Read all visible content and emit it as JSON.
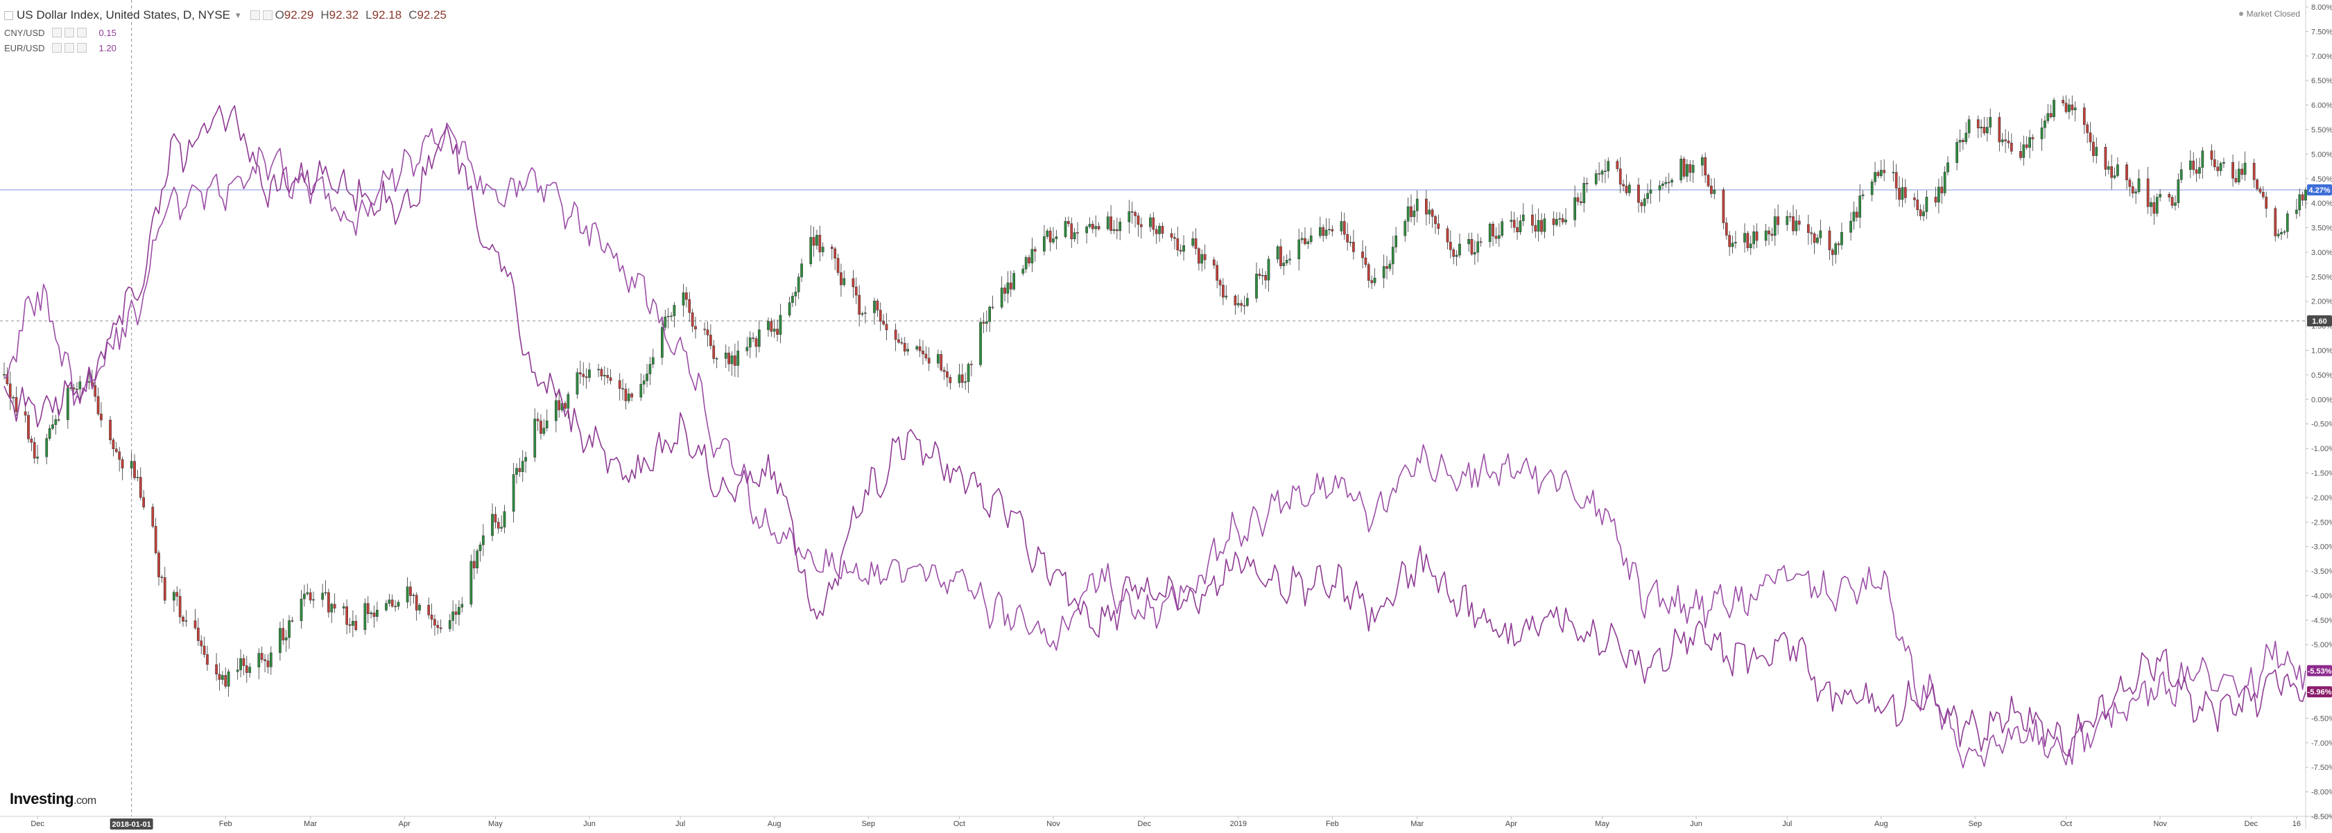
{
  "legend": {
    "symbol": "US Dollar Index, United States, D, NYSE",
    "open_label": "O",
    "open": "92.29",
    "high_label": "H",
    "high": "92.32",
    "low_label": "L",
    "low": "92.18",
    "close_label": "C",
    "close": "92.25",
    "comparisons": [
      {
        "name": "CNY/USD",
        "value": "0.15"
      },
      {
        "name": "EUR/USD",
        "value": "1.20"
      }
    ]
  },
  "market_status": "Market Closed",
  "branding": {
    "logo": "Investing",
    "suffix": ".com"
  },
  "chart_data": {
    "type": "line",
    "title": "US Dollar Index, United States, D, NYSE",
    "y_scale": "percent",
    "ylim": [
      -8.5,
      8.0
    ],
    "y_ticks": [
      "8.00%",
      "7.50%",
      "7.00%",
      "6.50%",
      "6.00%",
      "5.50%",
      "5.00%",
      "4.50%",
      "4.00%",
      "3.50%",
      "3.00%",
      "2.50%",
      "2.00%",
      "1.50%",
      "1.00%",
      "0.50%",
      "0.00%",
      "-0.50%",
      "-1.00%",
      "-1.50%",
      "-2.00%",
      "-2.50%",
      "-3.00%",
      "-3.50%",
      "-4.00%",
      "-4.50%",
      "-5.00%",
      "-5.50%",
      "-6.00%",
      "-6.50%",
      "-7.00%",
      "-7.50%",
      "-8.00%",
      "-8.50%"
    ],
    "x_ticks": [
      "Dec",
      "2018-01-01",
      "Feb",
      "Mar",
      "Apr",
      "May",
      "Jun",
      "Jul",
      "Aug",
      "Sep",
      "Oct",
      "Nov",
      "Dec",
      "2019",
      "Feb",
      "Mar",
      "Apr",
      "May",
      "Jun",
      "Jul",
      "Aug",
      "Sep",
      "Oct",
      "Nov",
      "Dec",
      "16"
    ],
    "x_tick_dates": [
      "2017-12-01",
      "2018-01-01",
      "2018-02-01",
      "2018-03-01",
      "2018-04-01",
      "2018-05-01",
      "2018-06-01",
      "2018-07-01",
      "2018-08-01",
      "2018-09-01",
      "2018-10-01",
      "2018-11-01",
      "2018-12-01",
      "2019-01-01",
      "2019-02-01",
      "2019-03-01",
      "2019-04-01",
      "2019-05-01",
      "2019-06-01",
      "2019-07-01",
      "2019-08-01",
      "2019-09-01",
      "2019-10-01",
      "2019-11-01",
      "2019-12-01",
      "2019-12-16"
    ],
    "x_range": [
      "2017-11-20",
      "2019-12-19"
    ],
    "crosshair_date": "2018-01-01",
    "crosshair_label": "2018-01-01",
    "crosshair_value": 1.6,
    "crosshair_value_label": "1.60",
    "last_value_label": "4.27%",
    "last_value": 4.27,
    "grid": false,
    "series": [
      {
        "name": "US Dollar Index",
        "style": "candlestick",
        "up_color": "#2e8b3e",
        "down_color": "#c1403a",
        "points": [
          {
            "date": "2017-11-20",
            "y": 0.3
          },
          {
            "date": "2017-12-01",
            "y": -1.0
          },
          {
            "date": "2017-12-15",
            "y": 0.4
          },
          {
            "date": "2018-01-01",
            "y": -1.5
          },
          {
            "date": "2018-01-15",
            "y": -4.2
          },
          {
            "date": "2018-01-30",
            "y": -5.6
          },
          {
            "date": "2018-02-15",
            "y": -5.2
          },
          {
            "date": "2018-03-01",
            "y": -3.9
          },
          {
            "date": "2018-03-15",
            "y": -4.5
          },
          {
            "date": "2018-04-01",
            "y": -4.0
          },
          {
            "date": "2018-04-15",
            "y": -4.6
          },
          {
            "date": "2018-05-01",
            "y": -2.5
          },
          {
            "date": "2018-05-15",
            "y": -0.6
          },
          {
            "date": "2018-06-01",
            "y": 0.6
          },
          {
            "date": "2018-06-15",
            "y": 0.1
          },
          {
            "date": "2018-07-01",
            "y": 2.0
          },
          {
            "date": "2018-07-15",
            "y": 0.8
          },
          {
            "date": "2018-08-01",
            "y": 1.5
          },
          {
            "date": "2018-08-15",
            "y": 3.3
          },
          {
            "date": "2018-09-01",
            "y": 1.8
          },
          {
            "date": "2018-09-15",
            "y": 1.0
          },
          {
            "date": "2018-10-01",
            "y": 0.5
          },
          {
            "date": "2018-10-15",
            "y": 2.3
          },
          {
            "date": "2018-11-01",
            "y": 3.5
          },
          {
            "date": "2018-11-15",
            "y": 3.6
          },
          {
            "date": "2018-12-01",
            "y": 3.7
          },
          {
            "date": "2018-12-15",
            "y": 3.2
          },
          {
            "date": "2019-01-01",
            "y": 2.0
          },
          {
            "date": "2019-01-15",
            "y": 2.9
          },
          {
            "date": "2019-02-01",
            "y": 3.6
          },
          {
            "date": "2019-02-15",
            "y": 2.6
          },
          {
            "date": "2019-03-01",
            "y": 4.0
          },
          {
            "date": "2019-03-15",
            "y": 3.0
          },
          {
            "date": "2019-04-01",
            "y": 3.7
          },
          {
            "date": "2019-04-15",
            "y": 3.6
          },
          {
            "date": "2019-05-01",
            "y": 4.7
          },
          {
            "date": "2019-05-15",
            "y": 4.1
          },
          {
            "date": "2019-06-01",
            "y": 4.9
          },
          {
            "date": "2019-06-15",
            "y": 3.2
          },
          {
            "date": "2019-07-01",
            "y": 3.7
          },
          {
            "date": "2019-07-15",
            "y": 3.2
          },
          {
            "date": "2019-08-01",
            "y": 4.6
          },
          {
            "date": "2019-08-15",
            "y": 3.9
          },
          {
            "date": "2019-09-01",
            "y": 5.7
          },
          {
            "date": "2019-09-15",
            "y": 5.1
          },
          {
            "date": "2019-10-01",
            "y": 6.1
          },
          {
            "date": "2019-10-15",
            "y": 4.7
          },
          {
            "date": "2019-11-01",
            "y": 4.0
          },
          {
            "date": "2019-11-15",
            "y": 4.9
          },
          {
            "date": "2019-12-01",
            "y": 4.6
          },
          {
            "date": "2019-12-10",
            "y": 3.5
          },
          {
            "date": "2019-12-19",
            "y": 4.27
          }
        ]
      },
      {
        "name": "CNY/USD",
        "style": "line",
        "color": "#9b4ea6",
        "value_label": "-5.53%",
        "points": [
          {
            "date": "2017-11-20",
            "y": 0.5
          },
          {
            "date": "2017-12-01",
            "y": 2.1
          },
          {
            "date": "2017-12-15",
            "y": 0.1
          },
          {
            "date": "2018-01-01",
            "y": 1.6
          },
          {
            "date": "2018-01-15",
            "y": 4.0
          },
          {
            "date": "2018-02-01",
            "y": 4.3
          },
          {
            "date": "2018-02-15",
            "y": 4.8
          },
          {
            "date": "2018-03-01",
            "y": 4.3
          },
          {
            "date": "2018-03-15",
            "y": 3.6
          },
          {
            "date": "2018-04-01",
            "y": 4.8
          },
          {
            "date": "2018-04-15",
            "y": 5.5
          },
          {
            "date": "2018-05-01",
            "y": 4.2
          },
          {
            "date": "2018-05-15",
            "y": 4.4
          },
          {
            "date": "2018-06-01",
            "y": 3.5
          },
          {
            "date": "2018-06-15",
            "y": 2.5
          },
          {
            "date": "2018-07-01",
            "y": 1.0
          },
          {
            "date": "2018-07-15",
            "y": -1.0
          },
          {
            "date": "2018-08-01",
            "y": -2.8
          },
          {
            "date": "2018-08-15",
            "y": -3.3
          },
          {
            "date": "2018-09-01",
            "y": -3.6
          },
          {
            "date": "2018-09-15",
            "y": -3.4
          },
          {
            "date": "2018-10-01",
            "y": -3.7
          },
          {
            "date": "2018-10-15",
            "y": -4.4
          },
          {
            "date": "2018-11-01",
            "y": -4.9
          },
          {
            "date": "2018-11-15",
            "y": -3.6
          },
          {
            "date": "2018-12-01",
            "y": -4.4
          },
          {
            "date": "2018-12-15",
            "y": -3.8
          },
          {
            "date": "2019-01-01",
            "y": -2.7
          },
          {
            "date": "2019-01-15",
            "y": -2.2
          },
          {
            "date": "2019-02-01",
            "y": -1.7
          },
          {
            "date": "2019-02-15",
            "y": -2.3
          },
          {
            "date": "2019-03-01",
            "y": -1.3
          },
          {
            "date": "2019-03-15",
            "y": -1.5
          },
          {
            "date": "2019-04-01",
            "y": -1.4
          },
          {
            "date": "2019-04-15",
            "y": -1.6
          },
          {
            "date": "2019-05-01",
            "y": -2.2
          },
          {
            "date": "2019-05-15",
            "y": -4.0
          },
          {
            "date": "2019-06-01",
            "y": -4.3
          },
          {
            "date": "2019-06-15",
            "y": -4.1
          },
          {
            "date": "2019-07-01",
            "y": -3.5
          },
          {
            "date": "2019-07-15",
            "y": -3.9
          },
          {
            "date": "2019-08-01",
            "y": -3.8
          },
          {
            "date": "2019-08-15",
            "y": -6.0
          },
          {
            "date": "2019-09-01",
            "y": -7.4
          },
          {
            "date": "2019-09-15",
            "y": -6.8
          },
          {
            "date": "2019-10-01",
            "y": -7.2
          },
          {
            "date": "2019-10-15",
            "y": -6.4
          },
          {
            "date": "2019-11-01",
            "y": -5.9
          },
          {
            "date": "2019-11-15",
            "y": -5.6
          },
          {
            "date": "2019-12-01",
            "y": -5.8
          },
          {
            "date": "2019-12-10",
            "y": -5.1
          },
          {
            "date": "2019-12-19",
            "y": -5.53
          }
        ]
      },
      {
        "name": "EUR/USD",
        "style": "line",
        "color": "#8e3a93",
        "value_label": "-5.96%",
        "points": [
          {
            "date": "2017-11-20",
            "y": 0.0
          },
          {
            "date": "2017-12-01",
            "y": -0.2
          },
          {
            "date": "2017-12-15",
            "y": 0.2
          },
          {
            "date": "2018-01-01",
            "y": 2.0
          },
          {
            "date": "2018-01-15",
            "y": 5.0
          },
          {
            "date": "2018-02-01",
            "y": 5.9
          },
          {
            "date": "2018-02-15",
            "y": 4.3
          },
          {
            "date": "2018-03-01",
            "y": 4.5
          },
          {
            "date": "2018-03-15",
            "y": 4.2
          },
          {
            "date": "2018-04-01",
            "y": 4.0
          },
          {
            "date": "2018-04-15",
            "y": 5.3
          },
          {
            "date": "2018-05-01",
            "y": 3.0
          },
          {
            "date": "2018-05-15",
            "y": 0.4
          },
          {
            "date": "2018-06-01",
            "y": -0.8
          },
          {
            "date": "2018-06-15",
            "y": -1.6
          },
          {
            "date": "2018-07-01",
            "y": -0.7
          },
          {
            "date": "2018-07-15",
            "y": -1.7
          },
          {
            "date": "2018-08-01",
            "y": -1.5
          },
          {
            "date": "2018-08-15",
            "y": -4.4
          },
          {
            "date": "2018-09-01",
            "y": -1.8
          },
          {
            "date": "2018-09-15",
            "y": -0.8
          },
          {
            "date": "2018-10-01",
            "y": -1.5
          },
          {
            "date": "2018-10-15",
            "y": -2.2
          },
          {
            "date": "2018-11-01",
            "y": -3.6
          },
          {
            "date": "2018-11-15",
            "y": -4.6
          },
          {
            "date": "2018-12-01",
            "y": -3.8
          },
          {
            "date": "2018-12-15",
            "y": -4.2
          },
          {
            "date": "2019-01-01",
            "y": -3.4
          },
          {
            "date": "2019-01-15",
            "y": -3.8
          },
          {
            "date": "2019-02-01",
            "y": -3.7
          },
          {
            "date": "2019-02-15",
            "y": -4.3
          },
          {
            "date": "2019-03-01",
            "y": -3.4
          },
          {
            "date": "2019-03-15",
            "y": -4.2
          },
          {
            "date": "2019-04-01",
            "y": -4.9
          },
          {
            "date": "2019-04-15",
            "y": -4.3
          },
          {
            "date": "2019-05-01",
            "y": -4.9
          },
          {
            "date": "2019-05-15",
            "y": -5.4
          },
          {
            "date": "2019-06-01",
            "y": -4.8
          },
          {
            "date": "2019-06-15",
            "y": -5.3
          },
          {
            "date": "2019-07-01",
            "y": -5.0
          },
          {
            "date": "2019-07-15",
            "y": -6.0
          },
          {
            "date": "2019-08-01",
            "y": -6.3
          },
          {
            "date": "2019-08-15",
            "y": -6.1
          },
          {
            "date": "2019-09-01",
            "y": -6.8
          },
          {
            "date": "2019-09-15",
            "y": -6.4
          },
          {
            "date": "2019-10-01",
            "y": -6.9
          },
          {
            "date": "2019-10-15",
            "y": -6.2
          },
          {
            "date": "2019-11-01",
            "y": -5.4
          },
          {
            "date": "2019-11-15",
            "y": -6.4
          },
          {
            "date": "2019-12-01",
            "y": -6.1
          },
          {
            "date": "2019-12-10",
            "y": -5.7
          },
          {
            "date": "2019-12-19",
            "y": -5.96
          }
        ]
      }
    ]
  },
  "colors": {
    "candle_up": "#2e8b3e",
    "candle_down": "#c1403a",
    "cny_line": "#9b4ea6",
    "eur_line": "#8e3a93",
    "last_price_line": "#a9b8e8",
    "last_price_badge": "#3f6fd8",
    "crosshair_badge": "#4a4a4a",
    "cny_badge": "#8e2b8e",
    "eur_badge": "#8a1c6a"
  }
}
